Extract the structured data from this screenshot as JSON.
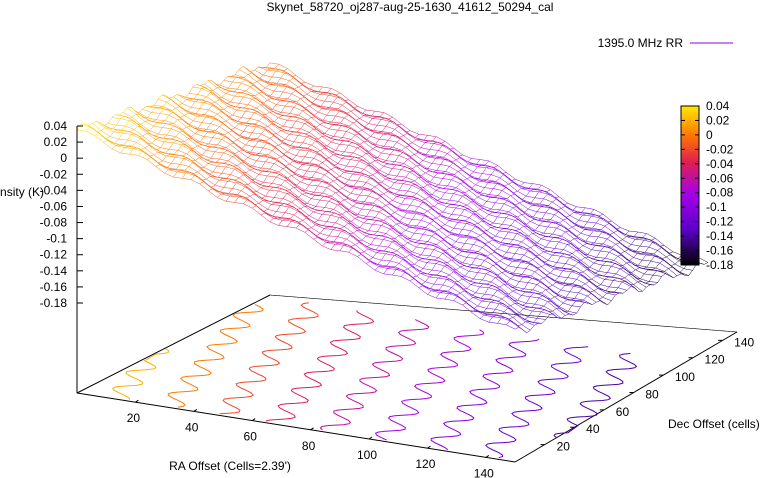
{
  "chart_data": {
    "type": "surface3d",
    "title": "Skynet_58720_oj287-aug-25-1630_41612_50294_cal",
    "xlabel": "RA Offset (Cells=2.39')",
    "ylabel": "Dec Offset (cells)",
    "zlabel": "Intensity (K)",
    "legend": {
      "entries": [
        "1395.0 MHz RR"
      ],
      "position": "top-right",
      "line_color": "#9400d3"
    },
    "x_ticks": [
      "20",
      "40",
      "60",
      "80",
      "100",
      "120",
      "140"
    ],
    "y_ticks": [
      "20",
      "40",
      "60",
      "80",
      "100",
      "120",
      "140"
    ],
    "z_ticks": [
      "0.04",
      "0.02",
      "0",
      "-0.02",
      "-0.04",
      "-0.06",
      "-0.08",
      "-0.1",
      "-0.12",
      "-0.14",
      "-0.16",
      "-0.18"
    ],
    "xlim": [
      0,
      150
    ],
    "ylim": [
      0,
      150
    ],
    "zlim": [
      -0.18,
      0.04
    ],
    "colorbar": {
      "range": [
        -0.18,
        0.04
      ],
      "ticks": [
        "0.04",
        "0.02",
        "0",
        "-0.02",
        "-0.04",
        "-0.06",
        "-0.08",
        "-0.1",
        "-0.12",
        "-0.14",
        "-0.16",
        "-0.18"
      ],
      "palette": [
        "#000000",
        "#5a00c8",
        "#a600e8",
        "#e0204e",
        "#ff7a00",
        "#ffe800"
      ]
    },
    "contour_levels": [
      0.02,
      0.0,
      -0.02,
      -0.04,
      -0.06,
      -0.08,
      -0.1,
      -0.12,
      -0.14
    ]
  }
}
